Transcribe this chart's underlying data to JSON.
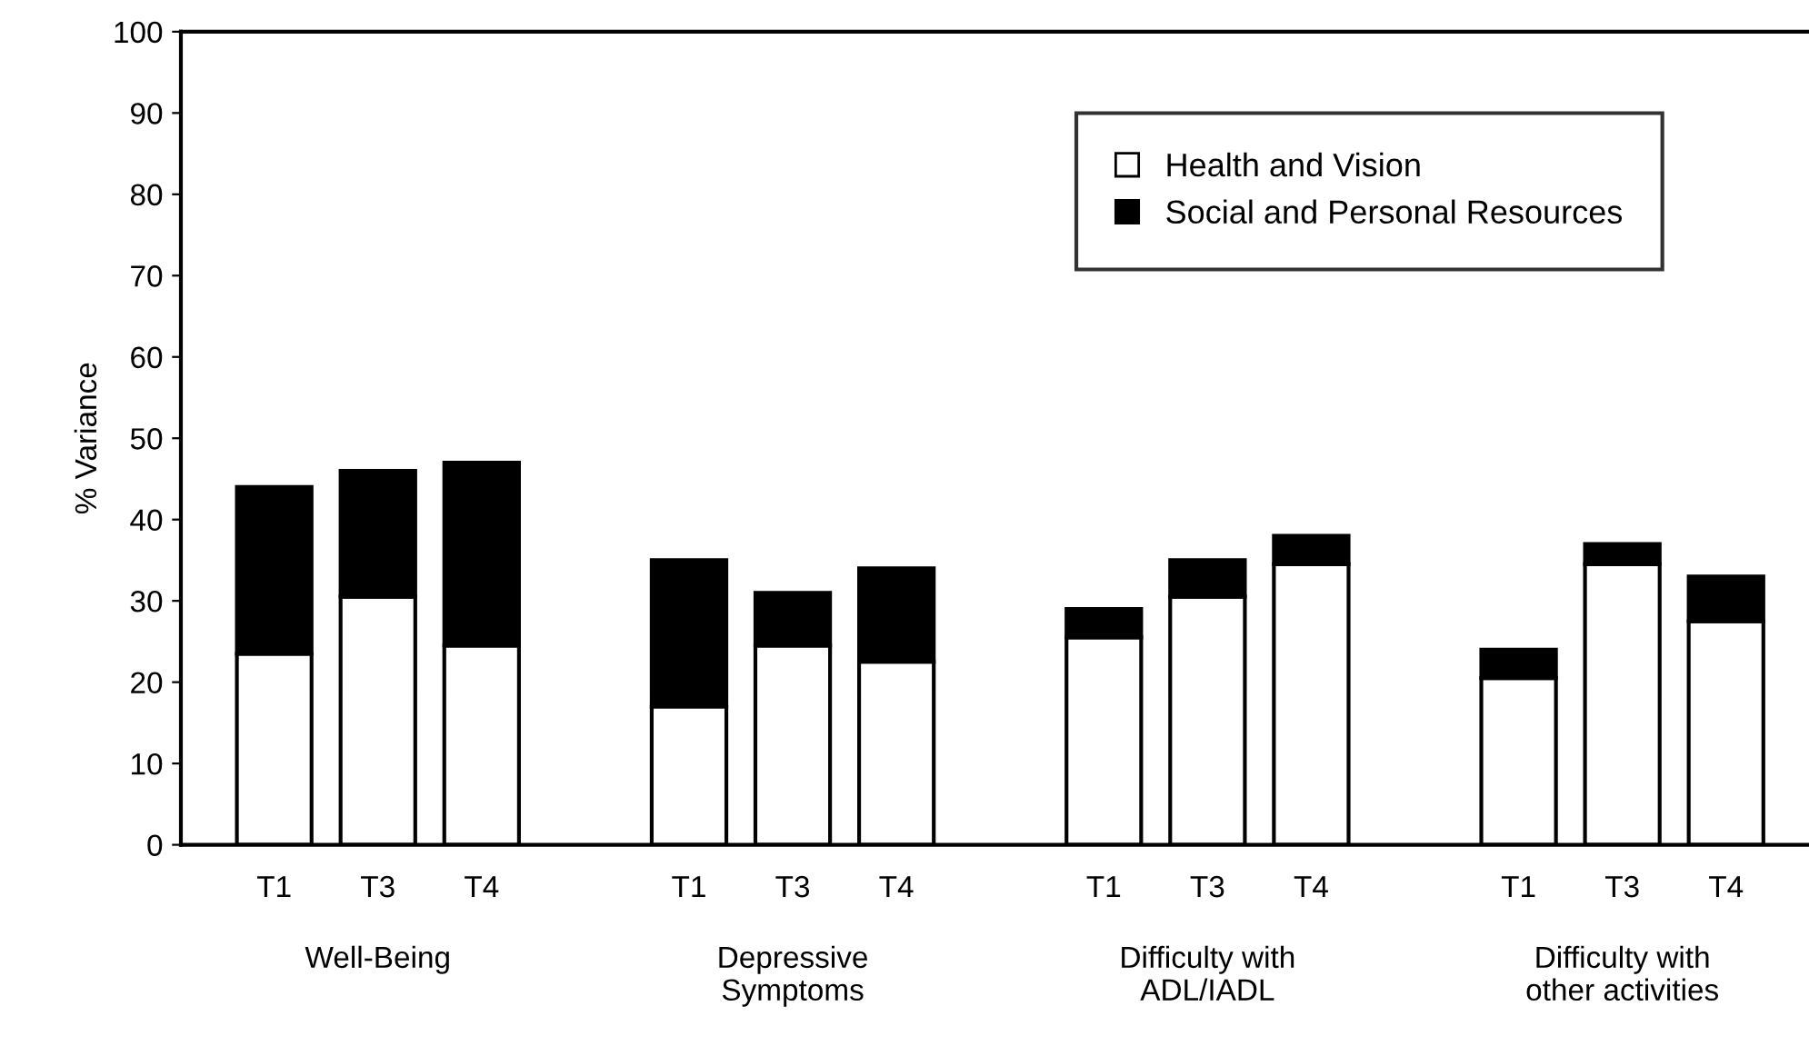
{
  "chart_data": {
    "type": "bar",
    "stacked": true,
    "ylabel": "% Variance",
    "categories": [
      "T1",
      "T3",
      "T4",
      null,
      "T1",
      "T3",
      "T4",
      null,
      "T1",
      "T3",
      "T4",
      null,
      "T1",
      "T3",
      "T4"
    ],
    "series": [
      {
        "name": "Health and Vision",
        "color": "#ffffff",
        "values": [
          23.5,
          30.5,
          24.5,
          null,
          17,
          24.5,
          22.5,
          null,
          25.5,
          30.5,
          34.5,
          null,
          20.5,
          34.5,
          27.5
        ]
      },
      {
        "name": "Social and Personal Resources",
        "color": "#000000",
        "values": [
          20.5,
          15.5,
          22.5,
          null,
          18,
          6.5,
          11.5,
          null,
          3.5,
          4.5,
          3.5,
          null,
          3.5,
          2.5,
          5.5
        ]
      }
    ],
    "annotations": [
      "Well-Being",
      "Depressive\nSymptoms",
      "Difficulty with\nADL/IADL",
      "Difficulty with\nother activities"
    ],
    "ylim": [
      0,
      100
    ],
    "yticks": [
      0,
      10,
      20,
      30,
      40,
      50,
      60,
      70,
      80,
      90,
      100
    ],
    "grid": false,
    "legend": "top right"
  }
}
